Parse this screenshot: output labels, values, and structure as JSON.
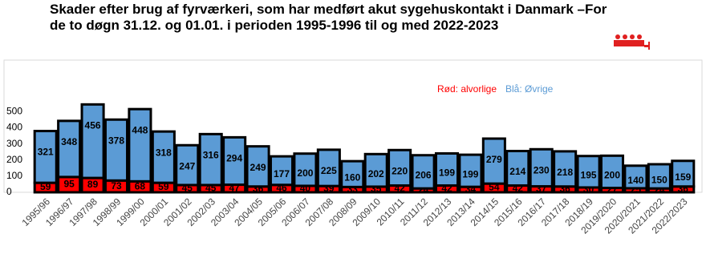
{
  "chart_data": {
    "type": "stacked-bar",
    "title": "Skader efter brug af fyrværkeri, som har medført akut sygehuskontakt i Danmark –For de to døgn 31.12. og 01.01. i perioden 1995-1996 til og med 2022-2023",
    "categories": [
      "1995/96",
      "1996/97",
      "1997/98",
      "1998/99",
      "1999/00",
      "2000/01",
      "2001/02",
      "2002/03",
      "2003/04",
      "2004/05",
      "2005/06",
      "2006/07",
      "2007/08",
      "2008/09",
      "2009/10",
      "2010/11",
      "2011/12",
      "2012/13",
      "2013/14",
      "2014/15",
      "2015/16",
      "2016/17",
      "2017/18",
      "2018/19",
      "2019/2020",
      "2020/2021",
      "2021/2022",
      "2022/2023"
    ],
    "series": [
      {
        "name": "Rød: alvorlige",
        "color": "#ff0000",
        "values": [
          59,
          95,
          89,
          73,
          68,
          59,
          45,
          45,
          47,
          36,
          46,
          40,
          39,
          33,
          35,
          42,
          24,
          42,
          34,
          54,
          42,
          37,
          36,
          30,
          27,
          25,
          24,
          36
        ]
      },
      {
        "name": "Blå: Øvrige",
        "color": "#5b9bd5",
        "values": [
          321,
          348,
          456,
          378,
          448,
          318,
          247,
          316,
          294,
          249,
          177,
          200,
          225,
          160,
          202,
          220,
          206,
          199,
          199,
          279,
          214,
          230,
          218,
          195,
          200,
          140,
          150,
          159
        ]
      }
    ],
    "ylim": [
      0,
      820
    ],
    "yticks": [
      0,
      100,
      200,
      300,
      400,
      500
    ]
  }
}
